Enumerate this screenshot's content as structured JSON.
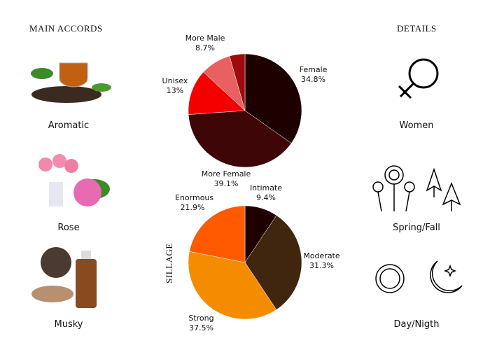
{
  "main_accords": {
    "title": "MAIN ACCORDS",
    "items": [
      {
        "label": "Aromatic"
      },
      {
        "label": "Rose"
      },
      {
        "label": "Musky"
      }
    ]
  },
  "details": {
    "title": "DETAILS",
    "items": [
      {
        "label": "Women",
        "icon": "venus-icon"
      },
      {
        "label": "Spring/Fall",
        "icon": "flowers-leaves-icon"
      },
      {
        "label": "Day/Nigth",
        "icon": "sun-moon-icon"
      }
    ]
  },
  "chart_data": [
    {
      "type": "pie",
      "slices": [
        {
          "name": "Female",
          "value": 34.8,
          "label": "34.8%",
          "color": "#1e0000"
        },
        {
          "name": "More Female",
          "value": 39.1,
          "label": "39.1%",
          "color": "#3e0606"
        },
        {
          "name": "Unisex",
          "value": 13,
          "label": "13%",
          "color": "#f50000"
        },
        {
          "name": "More Male",
          "value": 8.7,
          "label": "8.7%",
          "color": "#e86060"
        },
        {
          "name": "",
          "value": 4.4,
          "label": "",
          "color": "#a00a0a"
        }
      ]
    },
    {
      "type": "pie",
      "ylabel": "SILLAGE",
      "slices": [
        {
          "name": "Intimate",
          "value": 9.4,
          "label": "9.4%",
          "color": "#1e0000"
        },
        {
          "name": "Moderate",
          "value": 31.3,
          "label": "31.3%",
          "color": "#40260e"
        },
        {
          "name": "Strong",
          "value": 37.5,
          "label": "37.5%",
          "color": "#f58c00"
        },
        {
          "name": "Enormous",
          "value": 21.9,
          "label": "21.9%",
          "color": "#ff5a00"
        }
      ]
    }
  ]
}
